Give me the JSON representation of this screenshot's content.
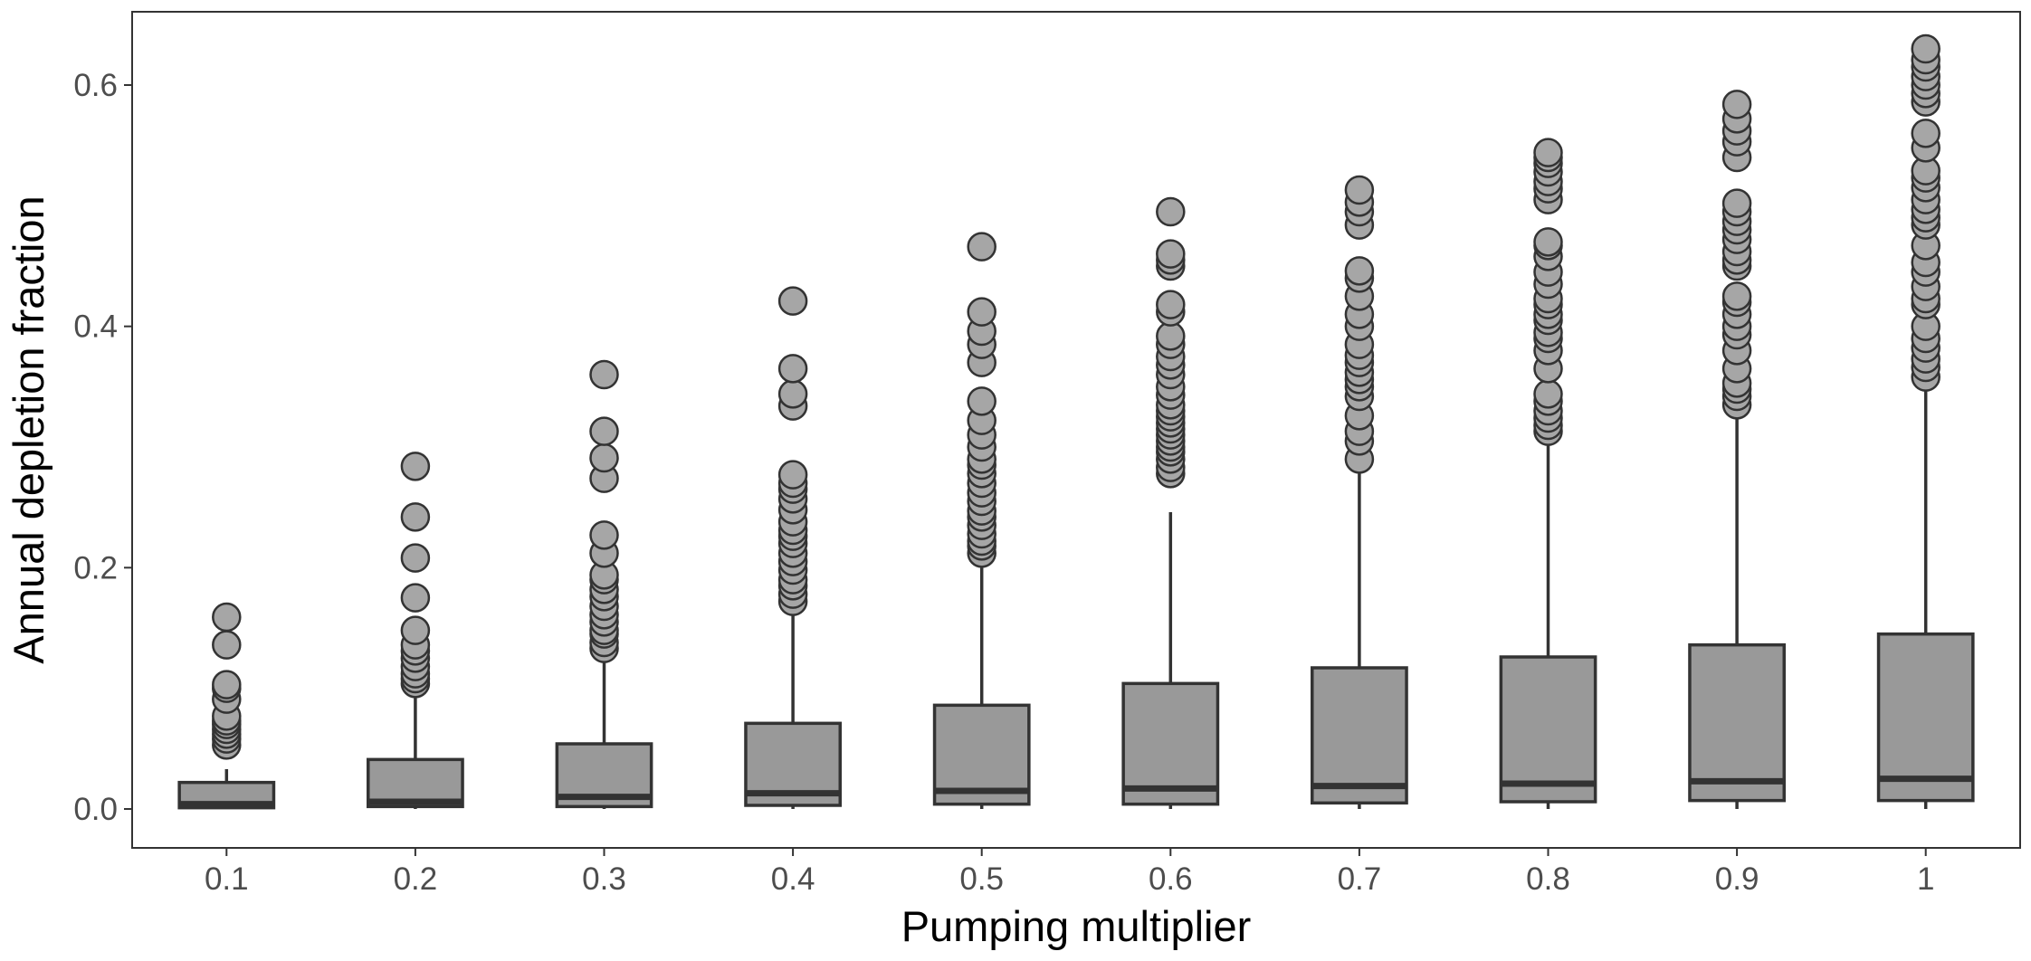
{
  "chart_data": {
    "type": "box",
    "xlabel": "Pumping multiplier",
    "ylabel": "Annual depletion fraction",
    "ylim": [
      -0.03,
      0.66
    ],
    "yticks": [
      0.0,
      0.2,
      0.4,
      0.6
    ],
    "ytick_labels": [
      "0.0",
      "0.2",
      "0.4",
      "0.6"
    ],
    "categories": [
      "0.1",
      "0.2",
      "0.3",
      "0.4",
      "0.5",
      "0.6",
      "0.7",
      "0.8",
      "0.9",
      "1"
    ],
    "grid": false,
    "colors": {
      "box_fill": "#999999",
      "stroke": "#333333",
      "outlier_fill": "#a6a6a6"
    },
    "boxes": [
      {
        "category": "0.1",
        "min": 0.0,
        "q1": 0.001,
        "median": 0.004,
        "q3": 0.022,
        "max": 0.033,
        "outliers": [
          0.053,
          0.058,
          0.062,
          0.066,
          0.07,
          0.073,
          0.077,
          0.091,
          0.1,
          0.103,
          0.136,
          0.159
        ]
      },
      {
        "category": "0.2",
        "min": 0.0,
        "q1": 0.002,
        "median": 0.006,
        "q3": 0.041,
        "max": 0.1,
        "outliers": [
          0.104,
          0.108,
          0.112,
          0.118,
          0.125,
          0.131,
          0.136,
          0.148,
          0.175,
          0.208,
          0.242,
          0.284
        ]
      },
      {
        "category": "0.3",
        "min": 0.0,
        "q1": 0.002,
        "median": 0.01,
        "q3": 0.054,
        "max": 0.128,
        "outliers": [
          0.133,
          0.138,
          0.145,
          0.148,
          0.155,
          0.161,
          0.168,
          0.176,
          0.182,
          0.19,
          0.194,
          0.212,
          0.227,
          0.274,
          0.291,
          0.313,
          0.36
        ]
      },
      {
        "category": "0.4",
        "min": 0.0,
        "q1": 0.003,
        "median": 0.013,
        "q3": 0.071,
        "max": 0.168,
        "outliers": [
          0.172,
          0.178,
          0.185,
          0.19,
          0.198,
          0.205,
          0.212,
          0.22,
          0.226,
          0.231,
          0.238,
          0.248,
          0.257,
          0.265,
          0.27,
          0.277,
          0.334,
          0.344,
          0.365,
          0.421
        ]
      },
      {
        "category": "0.5",
        "min": 0.0,
        "q1": 0.004,
        "median": 0.015,
        "q3": 0.086,
        "max": 0.208,
        "outliers": [
          0.212,
          0.218,
          0.222,
          0.228,
          0.235,
          0.242,
          0.247,
          0.255,
          0.262,
          0.27,
          0.278,
          0.285,
          0.29,
          0.3,
          0.31,
          0.322,
          0.338,
          0.37,
          0.385,
          0.396,
          0.412,
          0.466
        ]
      },
      {
        "category": "0.6",
        "min": 0.0,
        "q1": 0.004,
        "median": 0.017,
        "q3": 0.104,
        "max": 0.246,
        "outliers": [
          0.278,
          0.283,
          0.29,
          0.296,
          0.3,
          0.305,
          0.31,
          0.315,
          0.32,
          0.325,
          0.33,
          0.335,
          0.343,
          0.35,
          0.36,
          0.368,
          0.375,
          0.385,
          0.392,
          0.412,
          0.418,
          0.45,
          0.455,
          0.46,
          0.495
        ]
      },
      {
        "category": "0.7",
        "min": 0.0,
        "q1": 0.005,
        "median": 0.019,
        "q3": 0.117,
        "max": 0.283,
        "outliers": [
          0.29,
          0.305,
          0.313,
          0.326,
          0.342,
          0.35,
          0.356,
          0.362,
          0.37,
          0.376,
          0.385,
          0.4,
          0.41,
          0.425,
          0.44,
          0.446,
          0.484,
          0.495,
          0.503,
          0.513
        ]
      },
      {
        "category": "0.8",
        "min": 0.0,
        "q1": 0.006,
        "median": 0.021,
        "q3": 0.126,
        "max": 0.305,
        "outliers": [
          0.313,
          0.318,
          0.324,
          0.33,
          0.338,
          0.344,
          0.365,
          0.38,
          0.39,
          0.395,
          0.405,
          0.41,
          0.418,
          0.423,
          0.435,
          0.445,
          0.458,
          0.467,
          0.47,
          0.505,
          0.514,
          0.52,
          0.528,
          0.535,
          0.54,
          0.544
        ]
      },
      {
        "category": "0.9",
        "min": 0.0,
        "q1": 0.007,
        "median": 0.023,
        "q3": 0.136,
        "max": 0.325,
        "outliers": [
          0.335,
          0.342,
          0.348,
          0.353,
          0.365,
          0.38,
          0.393,
          0.4,
          0.41,
          0.42,
          0.425,
          0.45,
          0.455,
          0.462,
          0.472,
          0.48,
          0.487,
          0.495,
          0.502,
          0.54,
          0.553,
          0.562,
          0.572,
          0.584
        ]
      },
      {
        "category": "1",
        "min": 0.0,
        "q1": 0.007,
        "median": 0.025,
        "q3": 0.145,
        "max": 0.35,
        "outliers": [
          0.358,
          0.366,
          0.373,
          0.382,
          0.39,
          0.4,
          0.418,
          0.423,
          0.433,
          0.445,
          0.453,
          0.467,
          0.484,
          0.49,
          0.497,
          0.505,
          0.515,
          0.523,
          0.529,
          0.548,
          0.56,
          0.586,
          0.593,
          0.6,
          0.607,
          0.615,
          0.621,
          0.63
        ]
      }
    ]
  }
}
